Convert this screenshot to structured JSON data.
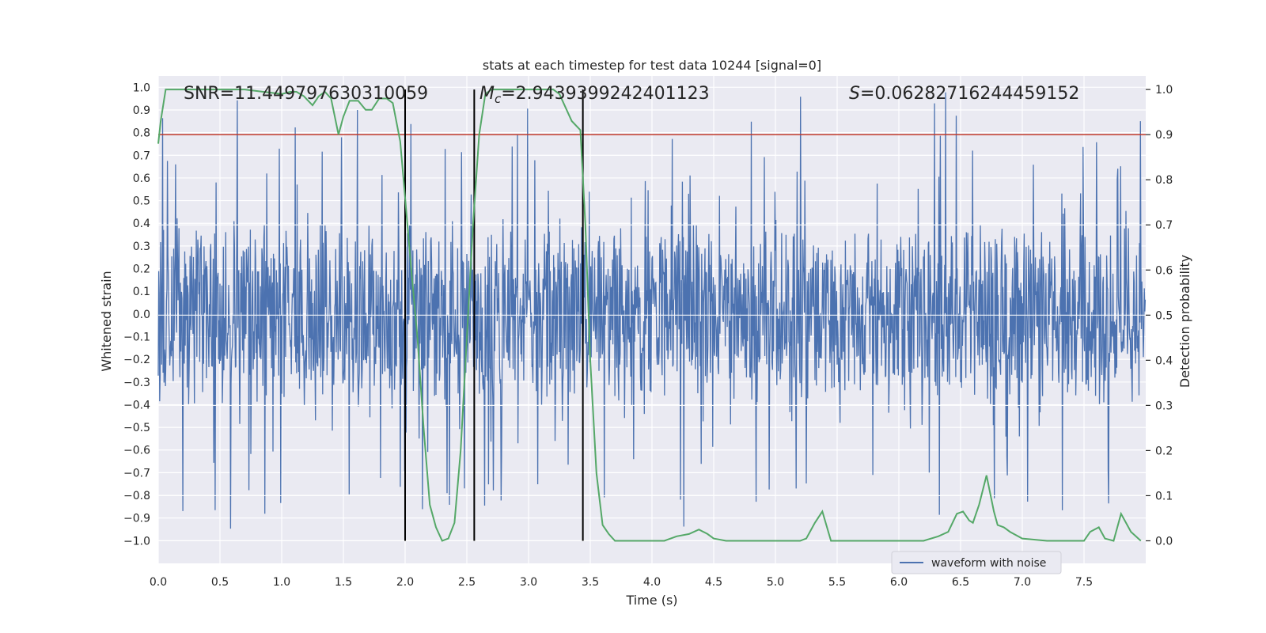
{
  "chart_data": {
    "type": "line",
    "title": "stats at each timestep for test data 10244 [signal=0]",
    "xlabel": "Time (s)",
    "ylabel_left": "Whitened strain",
    "ylabel_right": "Detection probability",
    "xlim": [
      0.0,
      8.0
    ],
    "ylim_left": [
      -1.1,
      1.05
    ],
    "ylim_right": [
      -0.05,
      1.03
    ],
    "x_ticks": [
      0.0,
      0.5,
      1.0,
      1.5,
      2.0,
      2.5,
      3.0,
      3.5,
      4.0,
      4.5,
      5.0,
      5.5,
      6.0,
      6.5,
      7.0,
      7.5
    ],
    "x_tick_labels": [
      "0.0",
      "0.5",
      "1.0",
      "1.5",
      "2.0",
      "2.5",
      "3.0",
      "3.5",
      "4.0",
      "4.5",
      "5.0",
      "5.5",
      "6.0",
      "6.5",
      "7.0",
      "7.5"
    ],
    "y_left_ticks": [
      1.0,
      0.9,
      0.8,
      0.7,
      0.6,
      0.5,
      0.4,
      0.3,
      0.2,
      0.1,
      0.0,
      -0.1,
      -0.2,
      -0.3,
      -0.4,
      -0.5,
      -0.6,
      -0.7,
      -0.8,
      -0.9,
      -1.0
    ],
    "y_left_tick_labels": [
      "1.0",
      "0.9",
      "0.8",
      "0.7",
      "0.6",
      "0.5",
      "0.4",
      "0.3",
      "0.2",
      "0.1",
      "0.0",
      "−0.1",
      "−0.2",
      "−0.3",
      "−0.4",
      "−0.5",
      "−0.6",
      "−0.7",
      "−0.8",
      "−0.9",
      "−1.0"
    ],
    "y_right_ticks": [
      1.0,
      0.9,
      0.8,
      0.7,
      0.6,
      0.5,
      0.4,
      0.3,
      0.2,
      0.1,
      0.0
    ],
    "y_right_tick_labels": [
      "1.0",
      "0.9",
      "0.8",
      "0.7",
      "0.6",
      "0.5",
      "0.4",
      "0.3",
      "0.2",
      "0.1",
      "0.0"
    ],
    "annotations": {
      "snr": "SNR=11.449797630310059",
      "mc_symbol": "M",
      "mc_sub": "c",
      "mc_value": "=2.9439399242401123",
      "s_symbol": "S",
      "s_value": "=0.06282716244459152"
    },
    "threshold": {
      "value": 0.9,
      "color": "#c0392b"
    },
    "vertical_markers": [
      2.0,
      2.56,
      3.44
    ],
    "series": [
      {
        "name": "waveform with noise",
        "color": "#4c72b0",
        "axis": "left",
        "description": "whitened noise strain sampled over 0-8 s",
        "band": [
          -0.42,
          0.37
        ],
        "sample_rate": 256
      },
      {
        "name": "detection probability",
        "color": "#55a868",
        "axis": "right",
        "x": [
          0.0,
          0.02,
          0.06,
          0.12,
          0.2,
          0.3,
          0.5,
          0.7,
          0.85,
          1.0,
          1.07,
          1.12,
          1.18,
          1.25,
          1.3,
          1.35,
          1.4,
          1.46,
          1.5,
          1.55,
          1.62,
          1.68,
          1.73,
          1.79,
          1.85,
          1.9,
          1.96,
          2.0,
          2.05,
          2.1,
          2.15,
          2.2,
          2.25,
          2.3,
          2.35,
          2.4,
          2.45,
          2.5,
          2.55,
          2.6,
          2.65,
          2.7,
          2.75,
          2.8,
          3.0,
          3.1,
          3.2,
          3.25,
          3.3,
          3.35,
          3.42,
          3.46,
          3.5,
          3.55,
          3.6,
          3.65,
          3.7,
          3.8,
          3.9,
          4.0,
          4.1,
          4.2,
          4.3,
          4.38,
          4.45,
          4.5,
          4.6,
          4.7,
          4.8,
          5.0,
          5.1,
          5.2,
          5.25,
          5.32,
          5.38,
          5.45,
          5.6,
          5.8,
          6.0,
          6.1,
          6.2,
          6.32,
          6.4,
          6.47,
          6.52,
          6.57,
          6.6,
          6.65,
          6.71,
          6.77,
          6.8,
          6.85,
          6.9,
          7.0,
          7.2,
          7.4,
          7.5,
          7.55,
          7.62,
          7.67,
          7.74,
          7.8,
          7.88,
          7.96
        ],
        "y": [
          0.88,
          0.93,
          1.0,
          1.0,
          1.0,
          1.0,
          1.0,
          1.0,
          0.995,
          0.99,
          0.995,
          0.995,
          0.985,
          0.965,
          0.985,
          0.995,
          0.98,
          0.9,
          0.94,
          0.975,
          0.975,
          0.955,
          0.955,
          0.98,
          0.98,
          0.97,
          0.885,
          0.76,
          0.6,
          0.45,
          0.25,
          0.08,
          0.03,
          0.0,
          0.005,
          0.04,
          0.2,
          0.45,
          0.7,
          0.9,
          0.99,
          1.0,
          1.0,
          1.0,
          1.0,
          1.0,
          1.0,
          0.99,
          0.96,
          0.93,
          0.91,
          0.7,
          0.4,
          0.15,
          0.035,
          0.015,
          0.0,
          0.0,
          0.0,
          0.0,
          0.0,
          0.01,
          0.015,
          0.025,
          0.015,
          0.005,
          0.0,
          0.0,
          0.0,
          0.0,
          0.0,
          0.0,
          0.005,
          0.04,
          0.065,
          0.0,
          0.0,
          0.0,
          0.0,
          0.0,
          0.0,
          0.01,
          0.02,
          0.06,
          0.065,
          0.045,
          0.04,
          0.08,
          0.145,
          0.065,
          0.035,
          0.03,
          0.02,
          0.005,
          0.0,
          0.0,
          0.0,
          0.02,
          0.03,
          0.005,
          0.0,
          0.06,
          0.02,
          0.0
        ]
      }
    ],
    "legend": {
      "placement": "bottom-right",
      "entries": [
        "waveform with noise"
      ]
    }
  }
}
